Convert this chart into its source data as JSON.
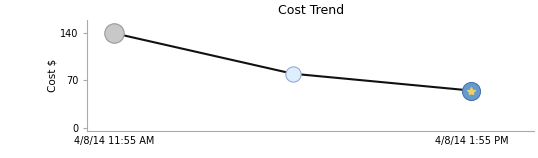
{
  "title": "Cost Trend",
  "ylabel": "Cost $",
  "x_tick_labels": [
    "4/8/14 11:55 AM",
    "4/8/14 1:55 PM"
  ],
  "x_values": [
    0,
    1,
    2
  ],
  "y_values": [
    140,
    80,
    55
  ],
  "yticks": [
    0,
    70,
    140
  ],
  "ylim": [
    -5,
    160
  ],
  "xlim": [
    -0.15,
    2.35
  ],
  "line_color": "#111111",
  "line_width": 1.5,
  "marker1_color": "#c8c8c8",
  "marker1_edge": "#999999",
  "marker1_size": 14,
  "marker2_color": "#ddeeff",
  "marker2_edge": "#99aacc",
  "marker2_size": 11,
  "marker3_color": "#6699cc",
  "marker3_edge": "#4477aa",
  "marker3_size": 13,
  "star_color": "#f0d060",
  "star_size": 6,
  "bg_color": "#ffffff",
  "plot_bg_color": "#ffffff",
  "title_fontsize": 9,
  "label_fontsize": 7.5,
  "tick_fontsize": 7,
  "x_tick_positions": [
    0,
    2
  ],
  "spine_color": "#aaaaaa"
}
